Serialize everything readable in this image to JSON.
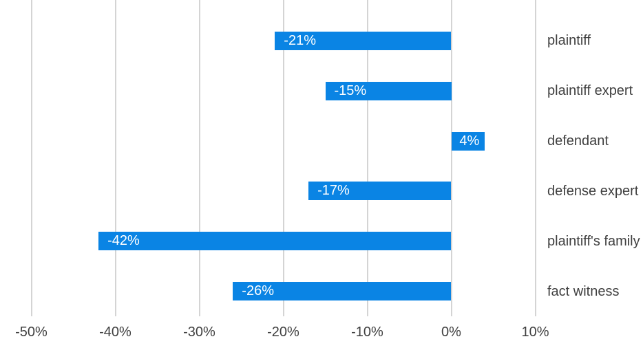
{
  "chart_data": {
    "type": "bar",
    "orientation": "horizontal",
    "title": "",
    "xlabel": "",
    "ylabel": "",
    "categories": [
      "plaintiff",
      "plaintiff expert",
      "defendant",
      "defense expert",
      "plaintiff's family",
      "fact witness"
    ],
    "values": [
      -21,
      -15,
      4,
      -17,
      -42,
      -26
    ],
    "data_labels": [
      "-21%",
      "-15%",
      "4%",
      "-17%",
      "-42%",
      "-26%"
    ],
    "x_ticks": [
      -50,
      -40,
      -30,
      -20,
      -10,
      0,
      10
    ],
    "x_tick_labels": [
      "-50%",
      "-40%",
      "-30%",
      "-20%",
      "-10%",
      "0%",
      "10%"
    ],
    "xlim": [
      -50,
      10
    ],
    "grid": "vertical-only",
    "legend": "none",
    "colors": {
      "bar": "#0a84e4",
      "gridline": "#d4d4d4",
      "axis_text": "#3f3f3f",
      "category_text": "#3f3f3f",
      "data_label_text": "#ffffff",
      "background": "#ffffff"
    }
  }
}
